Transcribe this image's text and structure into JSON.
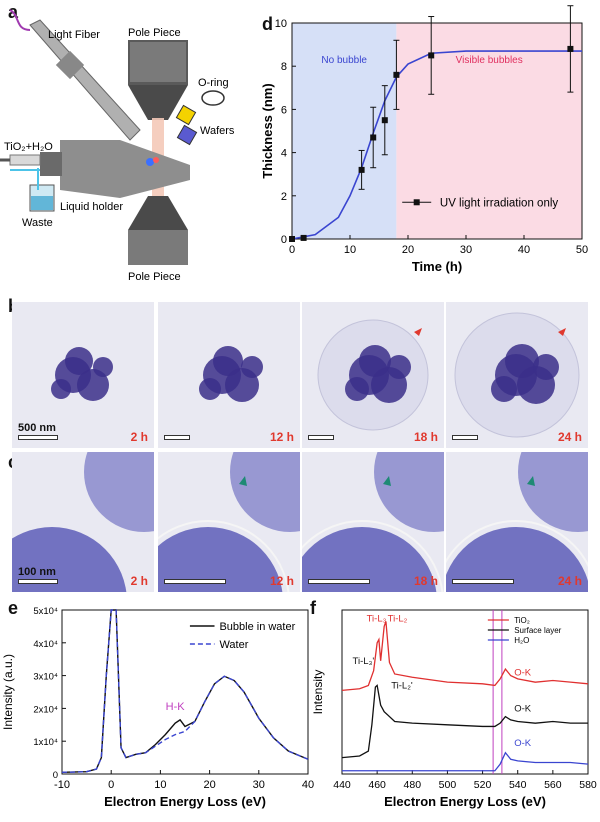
{
  "panels": {
    "a": {
      "letter": "a",
      "labels": {
        "light_fiber": "Light Fiber",
        "pole_piece_top": "Pole Piece",
        "o_ring": "O-ring",
        "wafers": "Wafers",
        "tio2_h2o": "TiO₂+H₂O",
        "liquid_holder": "Liquid holder",
        "waste": "Waste",
        "pole_piece_bottom": "Pole Piece"
      }
    },
    "d": {
      "letter": "d"
    },
    "b": {
      "letter": "b",
      "scale": "500 nm",
      "times": [
        "2 h",
        "12 h",
        "18 h",
        "24 h"
      ]
    },
    "c": {
      "letter": "c",
      "scale": "100 nm",
      "times": [
        "2 h",
        "12 h",
        "18 h",
        "24 h"
      ]
    },
    "e": {
      "letter": "e"
    },
    "f": {
      "letter": "f"
    }
  },
  "chart_data": [
    {
      "id": "d",
      "type": "line",
      "xlabel": "Time (h)",
      "ylabel": "Thickness (nm)",
      "xlim": [
        0,
        50
      ],
      "ylim": [
        0,
        10
      ],
      "xticks": [
        0,
        10,
        20,
        30,
        40,
        50
      ],
      "yticks": [
        0,
        2,
        4,
        6,
        8,
        10
      ],
      "regions": [
        {
          "label": "No bubble",
          "x": [
            0,
            18
          ],
          "color": "#d6e0f7"
        },
        {
          "label": "Visible bubbles",
          "x": [
            18,
            50
          ],
          "color": "#fbdbe4"
        }
      ],
      "series": [
        {
          "name": "UV light irradiation only",
          "x": [
            0,
            2,
            12,
            14,
            16,
            18,
            24,
            48
          ],
          "y": [
            0,
            0.05,
            3.2,
            4.7,
            5.5,
            7.6,
            8.5,
            8.8
          ],
          "err": [
            0,
            0,
            0.9,
            1.4,
            1.6,
            1.6,
            1.8,
            2.0
          ],
          "color": "#111111"
        }
      ],
      "fit": {
        "x": [
          0,
          4,
          8,
          10,
          12,
          14,
          16,
          18,
          20,
          24,
          30,
          40,
          50
        ],
        "y": [
          0,
          0.2,
          1.0,
          2.0,
          3.3,
          4.9,
          6.4,
          7.5,
          8.1,
          8.6,
          8.7,
          8.7,
          8.7
        ],
        "color": "#3a45d0"
      }
    },
    {
      "id": "e",
      "type": "line",
      "xlabel": "Electron Energy Loss (eV)",
      "ylabel": "Intensity (a.u.)",
      "xlim": [
        -10,
        40
      ],
      "ylim": [
        0,
        50000
      ],
      "xticks": [
        -10,
        0,
        10,
        20,
        30,
        40
      ],
      "yticks": [
        0,
        10000,
        20000,
        30000,
        40000,
        50000
      ],
      "ytick_labels": [
        "0",
        "1x10⁴",
        "2x10⁴",
        "3x10⁴",
        "4x10⁴",
        "5x10⁴"
      ],
      "annotation": {
        "text": "H-K",
        "x": 13,
        "y": 19500,
        "color": "#c040c0"
      },
      "series": [
        {
          "name": "Bubble in water",
          "style": "solid",
          "color": "#111111",
          "x": [
            -10,
            -5,
            -3,
            -2,
            -1,
            0,
            1,
            2,
            3,
            5,
            7,
            9,
            11,
            13,
            14,
            15,
            17,
            19,
            21,
            23,
            25,
            27,
            30,
            33,
            36,
            40
          ],
          "y": [
            500,
            700,
            1500,
            5000,
            30000,
            50000,
            50000,
            8000,
            5000,
            6000,
            6500,
            9000,
            12000,
            15500,
            16500,
            14500,
            16000,
            22000,
            27500,
            29800,
            28500,
            25000,
            17000,
            11000,
            7000,
            4500
          ]
        },
        {
          "name": "Water",
          "style": "dashed",
          "color": "#3a45d0",
          "x": [
            -10,
            -5,
            -3,
            -2,
            -1,
            0,
            1,
            2,
            3,
            5,
            7,
            9,
            11,
            13,
            15,
            17,
            19,
            21,
            23,
            25,
            27,
            30,
            33,
            36,
            40
          ],
          "y": [
            500,
            700,
            1500,
            5000,
            30000,
            50000,
            50000,
            8000,
            5000,
            6000,
            6500,
            8500,
            10500,
            12000,
            13000,
            16000,
            22000,
            27500,
            29800,
            28500,
            25000,
            17000,
            11000,
            7000,
            4500
          ]
        }
      ]
    },
    {
      "id": "f",
      "type": "line",
      "xlabel": "Electron Energy Loss (eV)",
      "ylabel": "Intensity",
      "xlim": [
        440,
        580
      ],
      "xticks": [
        440,
        460,
        480,
        500,
        520,
        540,
        560,
        580
      ],
      "vlines": [
        526,
        531
      ],
      "series": [
        {
          "name": "TiO₂",
          "color": "#e03030",
          "labels": [
            {
              "text": "Ti-L₃",
              "x": 454,
              "y": 9.3
            },
            {
              "text": "Ti-L₂",
              "x": 466,
              "y": 9.3
            },
            {
              "text": "O-K",
              "x": 538,
              "y": 6.0
            }
          ],
          "x": [
            440,
            450,
            455,
            458,
            460,
            461,
            462,
            464,
            465,
            467,
            470,
            480,
            500,
            520,
            527,
            530,
            533,
            536,
            540,
            550,
            560,
            570,
            580
          ],
          "y": [
            5.1,
            5.2,
            5.4,
            6.3,
            8.0,
            8.2,
            6.9,
            9.0,
            9.3,
            6.8,
            6.1,
            5.9,
            5.6,
            5.5,
            5.4,
            5.8,
            6.4,
            6.0,
            5.8,
            5.6,
            5.7,
            5.6,
            5.5
          ]
        },
        {
          "name": "Surface layer",
          "color": "#111111",
          "labels": [
            {
              "text": "Ti-L₃'",
              "x": 446,
              "y": 6.7
            },
            {
              "text": "Ti-L₂'",
              "x": 468,
              "y": 5.2
            },
            {
              "text": "O-K",
              "x": 538,
              "y": 3.8
            }
          ],
          "x": [
            440,
            450,
            455,
            457,
            459,
            460,
            462,
            464,
            466,
            470,
            480,
            500,
            520,
            527,
            530,
            533,
            536,
            540,
            550,
            560,
            570,
            580
          ],
          "y": [
            1.0,
            1.1,
            1.4,
            3.0,
            5.3,
            5.4,
            4.2,
            3.8,
            3.6,
            3.2,
            3.1,
            3.0,
            2.9,
            2.9,
            3.1,
            3.5,
            3.3,
            3.2,
            3.1,
            3.2,
            3.1,
            3.1
          ]
        },
        {
          "name": "H₂O",
          "color": "#3a45d0",
          "labels": [
            {
              "text": "O-K",
              "x": 538,
              "y": 1.7
            }
          ],
          "x": [
            440,
            460,
            480,
            500,
            520,
            527,
            530,
            533,
            536,
            540,
            550,
            560,
            570,
            580
          ],
          "y": [
            0.2,
            0.2,
            0.2,
            0.2,
            0.2,
            0.2,
            0.6,
            1.3,
            0.9,
            0.8,
            0.7,
            0.7,
            0.7,
            0.6
          ]
        }
      ]
    }
  ]
}
